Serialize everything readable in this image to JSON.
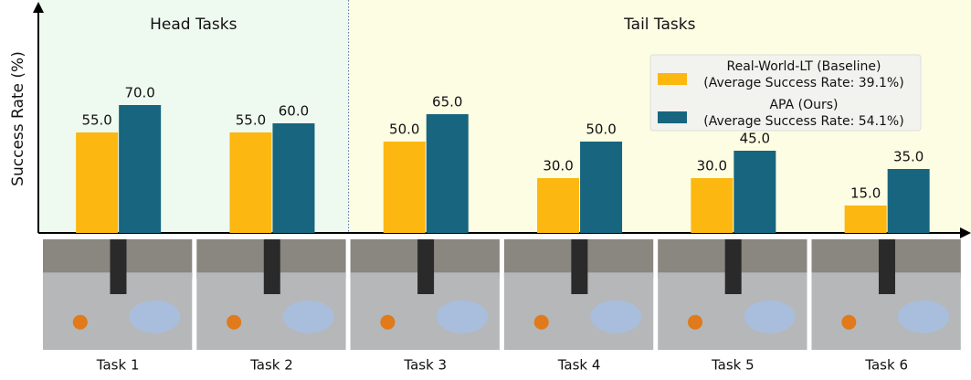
{
  "chart_data": {
    "type": "bar",
    "y_label": "Success Rate (%)",
    "categories": [
      "Task 1",
      "Task 2",
      "Task 3",
      "Task 4",
      "Task 5",
      "Task 6"
    ],
    "regions": [
      {
        "label": "Head Tasks",
        "span": [
          "Task 1",
          "Task 2"
        ],
        "color": "#eef9f0"
      },
      {
        "label": "Tail Tasks",
        "span": [
          "Task 3",
          "Task 6"
        ],
        "color": "#fdfde3"
      }
    ],
    "series": [
      {
        "name": "Real-World-LT (Baseline)",
        "note": "(Average Success Rate: 39.1%)",
        "color": "#fcb711",
        "values": [
          55,
          55,
          50,
          30,
          30,
          15
        ],
        "value_labels": [
          "55.0",
          "55.0",
          "50.0",
          "30.0",
          "30.0",
          "15.0"
        ]
      },
      {
        "name": "APA (Ours)",
        "note": "(Average Success Rate: 54.1%)",
        "color": "#17657e",
        "values": [
          70,
          60,
          65,
          50,
          45,
          35
        ],
        "value_labels": [
          "70.0",
          "60.0",
          "65.0",
          "50.0",
          "45.0",
          "35.0"
        ]
      }
    ],
    "ylim": [
      0,
      125
    ],
    "legend": "upper right"
  }
}
